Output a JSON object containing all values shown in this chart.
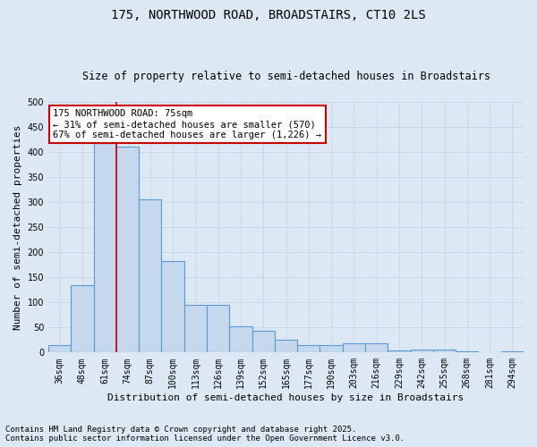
{
  "title1": "175, NORTHWOOD ROAD, BROADSTAIRS, CT10 2LS",
  "title2": "Size of property relative to semi-detached houses in Broadstairs",
  "xlabel": "Distribution of semi-detached houses by size in Broadstairs",
  "ylabel": "Number of semi-detached properties",
  "categories": [
    "36sqm",
    "48sqm",
    "61sqm",
    "74sqm",
    "87sqm",
    "100sqm",
    "113sqm",
    "126sqm",
    "139sqm",
    "152sqm",
    "165sqm",
    "177sqm",
    "190sqm",
    "203sqm",
    "216sqm",
    "229sqm",
    "242sqm",
    "255sqm",
    "268sqm",
    "281sqm",
    "294sqm"
  ],
  "values": [
    15,
    135,
    418,
    410,
    305,
    182,
    95,
    95,
    53,
    43,
    25,
    15,
    15,
    18,
    18,
    5,
    6,
    6,
    2,
    1,
    3
  ],
  "bar_color": "#c5d8ed",
  "bar_edge_color": "#5b9bd5",
  "bar_linewidth": 0.8,
  "grid_color": "#c8d8e8",
  "background_color": "#dce9f5",
  "axes_background_color": "#dce9f5",
  "vline_color": "#cc0000",
  "vline_x_bar_index": 2.5,
  "annotation_text": "175 NORTHWOOD ROAD: 75sqm\n← 31% of semi-detached houses are smaller (570)\n67% of semi-detached houses are larger (1,226) →",
  "annotation_box_facecolor": "#ffffff",
  "annotation_box_edgecolor": "#cc0000",
  "annotation_fontsize": 7.5,
  "footer_text": "Contains HM Land Registry data © Crown copyright and database right 2025.\nContains public sector information licensed under the Open Government Licence v3.0.",
  "ylim": [
    0,
    500
  ],
  "yticks": [
    0,
    50,
    100,
    150,
    200,
    250,
    300,
    350,
    400,
    450,
    500
  ],
  "title1_fontsize": 10,
  "title2_fontsize": 8.5,
  "xlabel_fontsize": 8,
  "ylabel_fontsize": 8,
  "tick_fontsize": 7,
  "footer_fontsize": 6.5
}
